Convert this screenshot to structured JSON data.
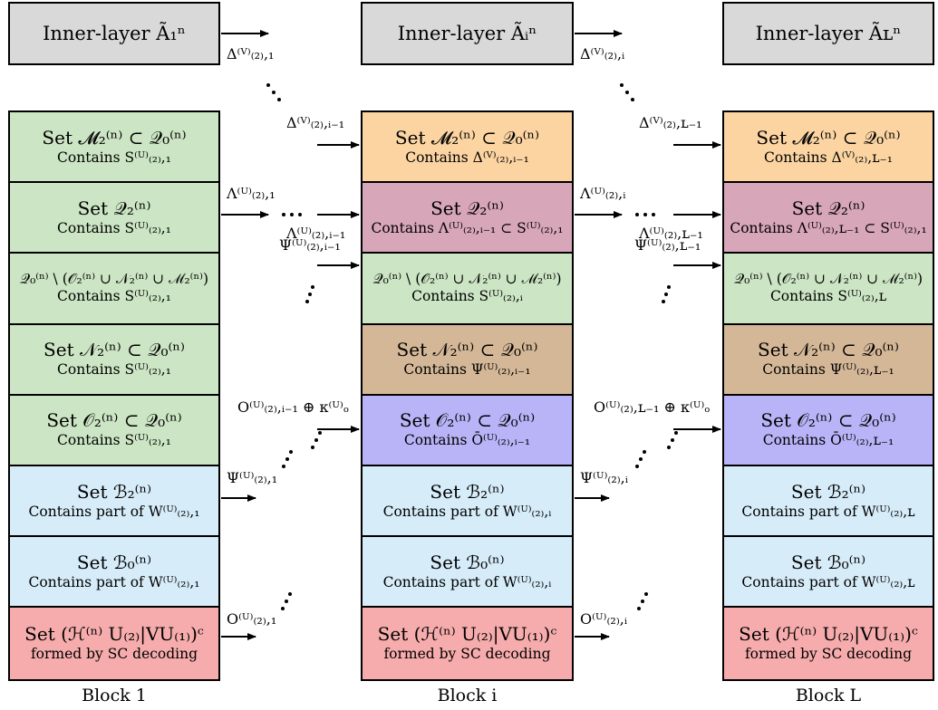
{
  "blocks": [
    {
      "head": "Inner-layer Ã₁ⁿ",
      "footer": "Block 1",
      "cells": [
        {
          "line1": "Set 𝓜₂⁽ⁿ⁾ ⊂ 𝒬₀⁽ⁿ⁾",
          "line2": "Contains S⁽ᵁ⁾₍₂₎,₁"
        },
        {
          "line1": "Set 𝒬₂⁽ⁿ⁾",
          "line2": "Contains S⁽ᵁ⁾₍₂₎,₁"
        },
        {
          "line1": "𝒬₀⁽ⁿ⁾ \\ (𝒪₂⁽ⁿ⁾ ∪ 𝒩₂⁽ⁿ⁾ ∪ ℳ₂⁽ⁿ⁾)",
          "line2": "Contains S⁽ᵁ⁾₍₂₎,₁"
        },
        {
          "line1": "Set 𝒩₂⁽ⁿ⁾ ⊂ 𝒬₀⁽ⁿ⁾",
          "line2": "Contains S⁽ᵁ⁾₍₂₎,₁"
        },
        {
          "line1": "Set 𝒪₂⁽ⁿ⁾ ⊂ 𝒬₀⁽ⁿ⁾",
          "line2": "Contains S⁽ᵁ⁾₍₂₎,₁"
        },
        {
          "line1": "Set ℬ₂⁽ⁿ⁾",
          "line2": "Contains part of W⁽ᵁ⁾₍₂₎,₁"
        },
        {
          "line1": "Set ℬ₀⁽ⁿ⁾",
          "line2": "Contains part of W⁽ᵁ⁾₍₂₎,₁"
        },
        {
          "line1": "Set (ℋ⁽ⁿ⁾ U₍₂₎|VU₍₁₎)ᶜ",
          "line2": "formed by SC decoding"
        }
      ]
    },
    {
      "head": "Inner-layer Ãᵢⁿ",
      "footer": "Block i",
      "cells": [
        {
          "line1": "Set 𝓜₂⁽ⁿ⁾ ⊂ 𝒬₀⁽ⁿ⁾",
          "line2": "Contains Δ⁽ⱽ⁾₍₂₎,ᵢ₋₁"
        },
        {
          "line1": "Set 𝒬₂⁽ⁿ⁾",
          "line2": "Contains Λ⁽ᵁ⁾₍₂₎,ᵢ₋₁ ⊂ S⁽ᵁ⁾₍₂₎,₁"
        },
        {
          "line1": "𝒬₀⁽ⁿ⁾ \\ (𝒪₂⁽ⁿ⁾ ∪ 𝒩₂⁽ⁿ⁾ ∪ ℳ₂⁽ⁿ⁾)",
          "line2": "Contains S⁽ᵁ⁾₍₂₎,ᵢ"
        },
        {
          "line1": "Set 𝒩₂⁽ⁿ⁾ ⊂ 𝒬₀⁽ⁿ⁾",
          "line2": "Contains Ψ⁽ᵁ⁾₍₂₎,ᵢ₋₁"
        },
        {
          "line1": "Set 𝒪₂⁽ⁿ⁾ ⊂ 𝒬₀⁽ⁿ⁾",
          "line2": "Contains Ō⁽ᵁ⁾₍₂₎,ᵢ₋₁"
        },
        {
          "line1": "Set ℬ₂⁽ⁿ⁾",
          "line2": "Contains part of W⁽ᵁ⁾₍₂₎,ᵢ"
        },
        {
          "line1": "Set ℬ₀⁽ⁿ⁾",
          "line2": "Contains part of W⁽ᵁ⁾₍₂₎,ᵢ"
        },
        {
          "line1": "Set (ℋ⁽ⁿ⁾ U₍₂₎|VU₍₁₎)ᶜ",
          "line2": "formed by SC decoding"
        }
      ]
    },
    {
      "head": "Inner-layer Ãʟⁿ",
      "footer": "Block L",
      "cells": [
        {
          "line1": "Set 𝓜₂⁽ⁿ⁾ ⊂ 𝒬₀⁽ⁿ⁾",
          "line2": "Contains Δ⁽ⱽ⁾₍₂₎,ʟ₋₁"
        },
        {
          "line1": "Set 𝒬₂⁽ⁿ⁾",
          "line2": "Contains Λ⁽ᵁ⁾₍₂₎,ʟ₋₁ ⊂ S⁽ᵁ⁾₍₂₎,₁"
        },
        {
          "line1": "𝒬₀⁽ⁿ⁾ \\ (𝒪₂⁽ⁿ⁾ ∪ 𝒩₂⁽ⁿ⁾ ∪ ℳ₂⁽ⁿ⁾)",
          "line2": "Contains S⁽ᵁ⁾₍₂₎,ʟ"
        },
        {
          "line1": "Set 𝒩₂⁽ⁿ⁾ ⊂ 𝒬₀⁽ⁿ⁾",
          "line2": "Contains Ψ⁽ᵁ⁾₍₂₎,ʟ₋₁"
        },
        {
          "line1": "Set 𝒪₂⁽ⁿ⁾ ⊂ 𝒬₀⁽ⁿ⁾",
          "line2": "Contains Ō⁽ᵁ⁾₍₂₎,ʟ₋₁"
        },
        {
          "line1": "Set ℬ₂⁽ⁿ⁾",
          "line2": "Contains part of W⁽ᵁ⁾₍₂₎,ʟ"
        },
        {
          "line1": "Set ℬ₀⁽ⁿ⁾",
          "line2": "Contains part of W⁽ᵁ⁾₍₂₎,ʟ"
        },
        {
          "line1": "Set (ℋ⁽ⁿ⁾ U₍₂₎|VU₍₁₎)ᶜ",
          "line2": "formed by SC decoding"
        }
      ]
    }
  ],
  "labels": {
    "delta_1": "Δ⁽ⱽ⁾₍₂₎,₁",
    "delta_i_minus_1": "Δ⁽ⱽ⁾₍₂₎,ᵢ₋₁",
    "delta_i": "Δ⁽ⱽ⁾₍₂₎,ᵢ",
    "delta_L_minus_1": "Δ⁽ⱽ⁾₍₂₎,ʟ₋₁",
    "lambda_1": "Λ⁽ᵁ⁾₍₂₎,₁",
    "lambda_i_minus_1": "Λ⁽ᵁ⁾₍₂₎,ᵢ₋₁",
    "lambda_i": "Λ⁽ᵁ⁾₍₂₎,ᵢ",
    "lambda_L_minus_1": "Λ⁽ᵁ⁾₍₂₎,ʟ₋₁",
    "psi_i_minus_1": "Ψ⁽ᵁ⁾₍₂₎,ᵢ₋₁",
    "psi_L_minus_1": "Ψ⁽ᵁ⁾₍₂₎,ʟ₋₁",
    "psi_1": "Ψ⁽ᵁ⁾₍₂₎,₁",
    "psi_i": "Ψ⁽ᵁ⁾₍₂₎,ᵢ",
    "o_xor_i_minus_1": "O⁽ᵁ⁾₍₂₎,ᵢ₋₁ ⊕ κ⁽ᵁ⁾ₒ",
    "o_xor_L_minus_1": "O⁽ᵁ⁾₍₂₎,ʟ₋₁ ⊕ κ⁽ᵁ⁾ₒ",
    "o_1": "O⁽ᵁ⁾₍₂₎,₁",
    "o_i": "O⁽ᵁ⁾₍₂₎,ᵢ"
  },
  "colors": {
    "header_gray": "#d9d9d9",
    "green": "#cce5c4",
    "orange": "#fbd4a2",
    "mauve": "#d8a6b9",
    "tan": "#d4b797",
    "violet": "#b9b4f7",
    "light_blue": "#d6ecf8",
    "pink": "#f6acad"
  }
}
